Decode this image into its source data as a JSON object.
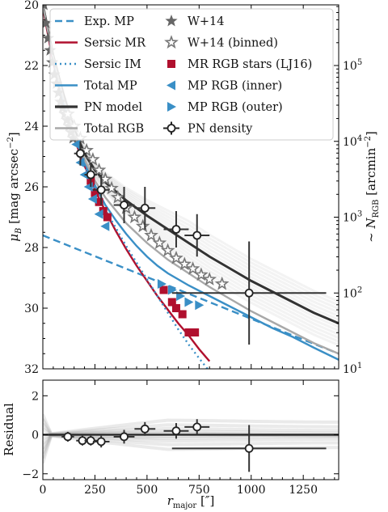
{
  "chart_data": [
    {
      "type": "line",
      "panel": "main",
      "ylabel": "μ_B [mag arcsec⁻²]",
      "ylabel_right": "~ N_RGB [arcmin⁻²]",
      "xlim": [
        0,
        1420
      ],
      "ylim": [
        32,
        20
      ],
      "y_inverted": true,
      "right_axis_scale": "log",
      "right_ticks": [
        {
          "value": 10,
          "label": "10",
          "sup": "1"
        },
        {
          "value": 100,
          "label": "10",
          "sup": "2"
        },
        {
          "value": 1000,
          "label": "10",
          "sup": "3"
        },
        {
          "value": 10000,
          "label": "10",
          "sup": "4"
        },
        {
          "value": 100000,
          "label": "10",
          "sup": "5"
        }
      ],
      "yticks": [
        20,
        22,
        24,
        26,
        28,
        30,
        32
      ],
      "xticks": [
        0,
        250,
        500,
        750,
        1000,
        1250
      ],
      "legend": {
        "placement": "top-center",
        "col1": [
          "Exp. MP",
          "Sersic MR",
          "Sersic IM",
          "Total MP",
          "PN model",
          "Total RGB"
        ],
        "col2": [
          "W+14",
          "W+14 (binned)",
          "MR RGB stars (LJ16)",
          "MP RGB (inner)",
          "MP RGB (outer)",
          "PN density"
        ]
      },
      "series": [
        {
          "name": "Exp. MP",
          "style": "dashed",
          "color": "#3a8fc6",
          "x": [
            0,
            200,
            400,
            600,
            800,
            1000,
            1200,
            1420
          ],
          "y": [
            27.6,
            28.15,
            28.7,
            29.25,
            29.8,
            30.35,
            30.9,
            31.5
          ]
        },
        {
          "name": "Sersic MR",
          "style": "solid",
          "color": "#b0102e",
          "x": [
            0,
            50,
            100,
            150,
            200,
            250,
            300,
            350,
            400,
            450,
            500,
            550,
            600,
            650,
            700,
            750,
            800
          ],
          "y": [
            20.1,
            21.9,
            23.3,
            24.4,
            25.3,
            26.1,
            26.8,
            27.45,
            28.05,
            28.6,
            29.1,
            29.6,
            30.05,
            30.5,
            30.9,
            31.35,
            31.75
          ]
        },
        {
          "name": "Sersic IM",
          "style": "dotted",
          "color": "#3a8fc6",
          "x": [
            0,
            50,
            100,
            150,
            200,
            250,
            300,
            350,
            400,
            450,
            500,
            550,
            600,
            650,
            700,
            750,
            790
          ],
          "y": [
            20.0,
            21.8,
            23.2,
            24.35,
            25.3,
            26.1,
            26.75,
            27.35,
            27.95,
            28.5,
            29.05,
            29.6,
            30.15,
            30.7,
            31.2,
            31.65,
            32.0
          ]
        },
        {
          "name": "Total MP",
          "style": "solid",
          "color": "#3a8fc6",
          "x": [
            0,
            50,
            100,
            150,
            200,
            250,
            300,
            350,
            400,
            450,
            500,
            550,
            600,
            700,
            800,
            900,
            1000,
            1100,
            1200,
            1300,
            1420
          ],
          "y": [
            20.0,
            21.8,
            23.2,
            24.3,
            25.2,
            25.95,
            26.6,
            27.1,
            27.55,
            27.95,
            28.3,
            28.6,
            28.85,
            29.25,
            29.6,
            29.95,
            30.3,
            30.65,
            30.95,
            31.3,
            31.7
          ]
        },
        {
          "name": "PN model",
          "style": "solid",
          "color": "#333333",
          "x": [
            0,
            50,
            100,
            150,
            200,
            250,
            300,
            400,
            500,
            600,
            700,
            800,
            900,
            1000,
            1100,
            1200,
            1300,
            1420
          ],
          "y": [
            20.0,
            21.7,
            23.0,
            24.1,
            24.9,
            25.45,
            25.85,
            26.45,
            26.95,
            27.4,
            27.85,
            28.3,
            28.7,
            29.1,
            29.45,
            29.8,
            30.15,
            30.5
          ]
        },
        {
          "name": "Total RGB",
          "style": "solid",
          "color": "#a8a8a8",
          "x": [
            0,
            50,
            100,
            150,
            200,
            250,
            300,
            400,
            500,
            600,
            700,
            800,
            900,
            1000,
            1100,
            1200,
            1300,
            1420
          ],
          "y": [
            20.0,
            21.75,
            23.1,
            24.2,
            25.1,
            25.8,
            26.35,
            27.2,
            27.85,
            28.4,
            28.85,
            29.3,
            29.7,
            30.1,
            30.45,
            30.8,
            31.15,
            31.5
          ]
        }
      ],
      "points": [
        {
          "name": "W+14",
          "marker": "filled-star",
          "color": "#666666",
          "x": [
            5,
            15,
            25,
            35,
            45,
            55,
            65,
            75,
            85,
            95,
            105,
            115,
            125,
            135,
            145
          ],
          "y": [
            20.0,
            20.6,
            21.1,
            21.5,
            21.9,
            22.3,
            22.6,
            22.9,
            23.2,
            23.4,
            23.6,
            23.8,
            24.0,
            24.2,
            24.4
          ]
        },
        {
          "name": "W+14 (binned)",
          "marker": "open-star",
          "color": "#777777",
          "x": [
            120,
            150,
            180,
            210,
            240,
            270,
            300,
            330,
            360,
            400,
            440,
            480,
            520,
            560,
            600,
            640,
            680,
            720,
            760,
            800,
            860
          ],
          "y": [
            23.6,
            24.0,
            24.4,
            24.8,
            25.1,
            25.45,
            25.75,
            26.05,
            26.35,
            26.7,
            27.0,
            27.3,
            27.6,
            27.85,
            28.1,
            28.35,
            28.55,
            28.7,
            28.9,
            29.05,
            29.2
          ]
        },
        {
          "name": "MR RGB stars (LJ16)",
          "marker": "square",
          "color": "#b0102e",
          "x": [
            230,
            250,
            270,
            290,
            310,
            580,
            620,
            640,
            670,
            700,
            730
          ],
          "y": [
            25.8,
            26.2,
            26.5,
            26.8,
            27.0,
            29.4,
            29.8,
            30.0,
            30.2,
            30.8,
            30.8
          ]
        },
        {
          "name": "MP RGB (inner)",
          "marker": "triangle-left",
          "color": "#3a8fc6",
          "x": [
            160,
            180,
            200,
            220,
            240,
            270,
            300
          ],
          "y": [
            24.6,
            25.2,
            25.6,
            26.0,
            26.4,
            26.9,
            27.3
          ]
        },
        {
          "name": "MP RGB (outer)",
          "marker": "triangle-right",
          "color": "#3a8fc6",
          "x": [
            570,
            620,
            660,
            700,
            750
          ],
          "y": [
            29.2,
            29.4,
            29.6,
            29.8,
            29.9
          ]
        },
        {
          "name": "PN density",
          "marker": "open-circle",
          "color": "#222222",
          "x": [
            180,
            230,
            280,
            390,
            490,
            640,
            740,
            990
          ],
          "y": [
            24.9,
            25.6,
            26.1,
            26.6,
            26.7,
            27.4,
            27.6,
            29.5
          ],
          "xerr": [
            30,
            30,
            40,
            50,
            50,
            60,
            60,
            370
          ],
          "yerr": [
            0.4,
            0.4,
            0.5,
            0.6,
            0.7,
            0.6,
            0.7,
            1.7
          ]
        }
      ]
    },
    {
      "type": "scatter",
      "panel": "residual",
      "xlabel": "r_major [″]",
      "ylabel": "Residual",
      "xlim": [
        0,
        1420
      ],
      "ylim": [
        -2.3,
        2.8
      ],
      "xticks": [
        0,
        250,
        500,
        750,
        1000,
        1250
      ],
      "yticks": [
        -2,
        0,
        2
      ],
      "points": {
        "x": [
          120,
          190,
          230,
          280,
          390,
          490,
          640,
          740,
          990
        ],
        "y": [
          -0.1,
          -0.3,
          -0.3,
          -0.35,
          -0.1,
          0.3,
          0.2,
          0.4,
          -0.7
        ],
        "xerr": [
          30,
          30,
          30,
          40,
          50,
          50,
          60,
          60,
          370
        ],
        "yerr": [
          0.25,
          0.25,
          0.25,
          0.3,
          0.35,
          0.35,
          0.4,
          0.4,
          1.2
        ]
      }
    }
  ]
}
